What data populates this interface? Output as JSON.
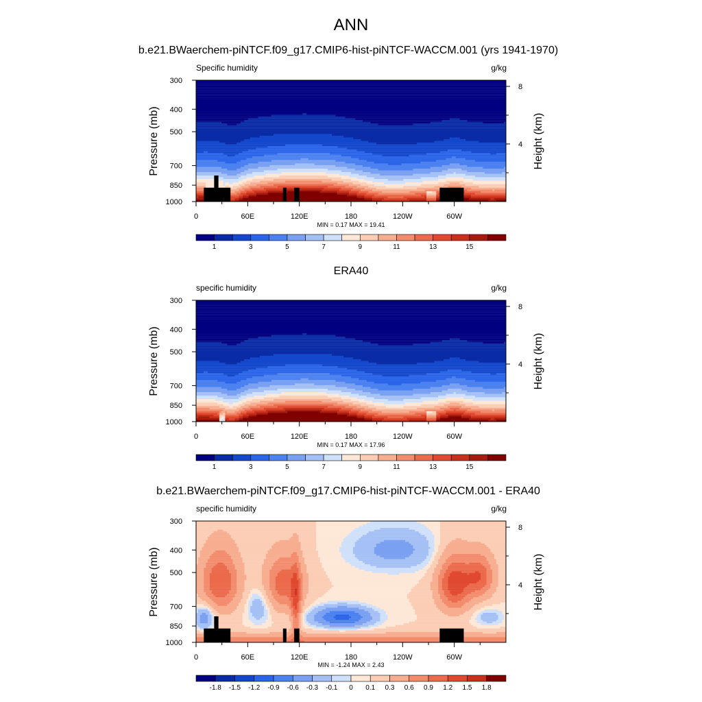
{
  "figure": {
    "title": "ANN",
    "x_tick_labels": [
      "0",
      "60E",
      "120E",
      "180",
      "120W",
      "60W"
    ],
    "x_tick_longitudes": [
      0,
      60,
      120,
      180,
      240,
      300
    ],
    "y_tick_labels": [
      "300",
      "400",
      "500",
      "700",
      "850",
      "1000"
    ],
    "y_tick_pressures": [
      300,
      400,
      500,
      700,
      850,
      1000
    ],
    "right_tick_labels": [
      "8",
      "4"
    ],
    "right_tick_heights_km": [
      8,
      4
    ],
    "left_axis_label": "Pressure (mb)",
    "right_axis_label": "Height (km)"
  },
  "chart_data": [
    {
      "type": "heatmap",
      "title": "b.e21.BWaerchem-piNTCF.f09_g17.CMIP6-hist-piNTCF-WACCM.001 (yrs 1941-1970)",
      "left_label": "Specific humidity",
      "right_label": "g/kg",
      "x_range": [
        0,
        360
      ],
      "y_range_mb": [
        1000,
        300
      ],
      "stats": "MIN =   0.17  MAX =  19.41",
      "min": 0.17,
      "max": 19.41,
      "field": "moist",
      "terrain": true,
      "levels": [
        0.0,
        1,
        2,
        3,
        4,
        5,
        6,
        7,
        8,
        9,
        10,
        11,
        12,
        13,
        14,
        15,
        16
      ],
      "colorbar_labels": [
        "1",
        "3",
        "5",
        "7",
        "9",
        "11",
        "13",
        "15"
      ],
      "colorbar_label_boxes": [
        1,
        3,
        5,
        7,
        9,
        11,
        13,
        15
      ],
      "colors": [
        "#000080",
        "#0a2ba6",
        "#1448cc",
        "#2a64e8",
        "#4c81f0",
        "#7aa0f2",
        "#a5c0f5",
        "#cfe0fa",
        "#fde7d7",
        "#fbcdb4",
        "#f7ad8f",
        "#f28c6d",
        "#eb6a4c",
        "#e0492f",
        "#c8301c",
        "#a51b0e",
        "#800000"
      ]
    },
    {
      "type": "heatmap",
      "title": "ERA40",
      "left_label": "specific humidity",
      "right_label": "g/kg",
      "x_range": [
        0,
        360
      ],
      "y_range_mb": [
        1000,
        300
      ],
      "stats": "MIN =   0.17  MAX =  17.96",
      "min": 0.17,
      "max": 17.96,
      "field": "moist",
      "terrain": false,
      "levels": [
        0.0,
        1,
        2,
        3,
        4,
        5,
        6,
        7,
        8,
        9,
        10,
        11,
        12,
        13,
        14,
        15,
        16
      ],
      "colorbar_labels": [
        "1",
        "3",
        "5",
        "7",
        "9",
        "11",
        "13",
        "15"
      ],
      "colorbar_label_boxes": [
        1,
        3,
        5,
        7,
        9,
        11,
        13,
        15
      ],
      "colors": [
        "#000080",
        "#0a2ba6",
        "#1448cc",
        "#2a64e8",
        "#4c81f0",
        "#7aa0f2",
        "#a5c0f5",
        "#cfe0fa",
        "#fde7d7",
        "#fbcdb4",
        "#f7ad8f",
        "#f28c6d",
        "#eb6a4c",
        "#e0492f",
        "#c8301c",
        "#a51b0e",
        "#800000"
      ]
    },
    {
      "type": "heatmap",
      "title": "b.e21.BWaerchem-piNTCF.f09_g17.CMIP6-hist-piNTCF-WACCM.001 - ERA40",
      "left_label": "specific humidity",
      "right_label": "g/kg",
      "x_range": [
        0,
        360
      ],
      "y_range_mb": [
        1000,
        300
      ],
      "stats": "MIN =  -1.24  MAX =   2.43",
      "min": -1.24,
      "max": 2.43,
      "field": "diff",
      "terrain": true,
      "levels": [
        -2.1,
        -1.8,
        -1.5,
        -1.2,
        -0.9,
        -0.6,
        -0.3,
        -0.1,
        0,
        0.1,
        0.3,
        0.6,
        0.9,
        1.2,
        1.5,
        1.8
      ],
      "colorbar_labels": [
        "-1.8",
        "-1.5",
        "-1.2",
        "-0.9",
        "-0.6",
        "-0.3",
        "-0.1",
        "0",
        "0.1",
        "0.3",
        "0.6",
        "0.9",
        "1.2",
        "1.5",
        "1.8"
      ],
      "colorbar_label_boxes": [
        1,
        2,
        3,
        4,
        5,
        6,
        7,
        8,
        9,
        10,
        11,
        12,
        13,
        14,
        15
      ],
      "colors": [
        "#000080",
        "#0a2ba6",
        "#1448cc",
        "#2a64e8",
        "#4c81f0",
        "#7aa0f2",
        "#a5c0f5",
        "#cfe0fa",
        "#fde7d7",
        "#fbcdb4",
        "#f7ad8f",
        "#f28c6d",
        "#eb6a4c",
        "#e0492f",
        "#c8301c",
        "#800000"
      ]
    }
  ]
}
